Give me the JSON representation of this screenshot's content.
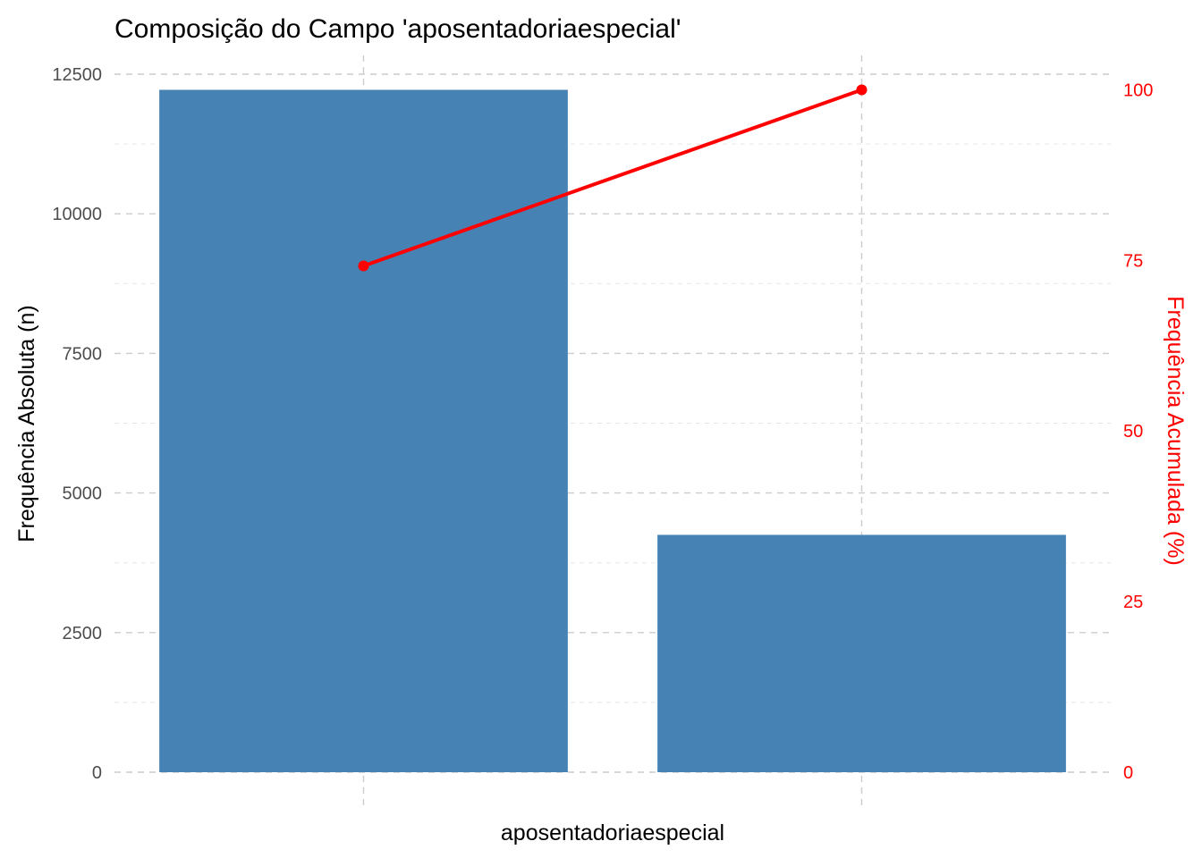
{
  "chart_data": {
    "type": "bar",
    "title": "Composição do Campo 'aposentadoriaespecial'",
    "xlabel": "aposentadoriaespecial",
    "ylabel": "Frequência Absoluta (n)",
    "ylabel_right": "Frequência Acumulada (%)",
    "categories": [
      "",
      ""
    ],
    "values": [
      12220,
      4250
    ],
    "ylim": [
      0,
      12500
    ],
    "yticks": [
      0,
      2500,
      5000,
      7500,
      10000,
      12500
    ],
    "ytick_labels": [
      "0",
      "2500",
      "5000",
      "7500",
      "10000",
      "12500"
    ],
    "cumulative_percent": [
      74.2,
      100
    ],
    "ylim_right": [
      0,
      100
    ],
    "yticks_right": [
      0,
      25,
      50,
      75,
      100
    ],
    "ytick_labels_right": [
      "0",
      "25",
      "50",
      "75",
      "100"
    ],
    "grid": true,
    "colors": {
      "bar": "#4682B4",
      "line": "#FF0000",
      "right_axis": "#FF0000"
    }
  }
}
